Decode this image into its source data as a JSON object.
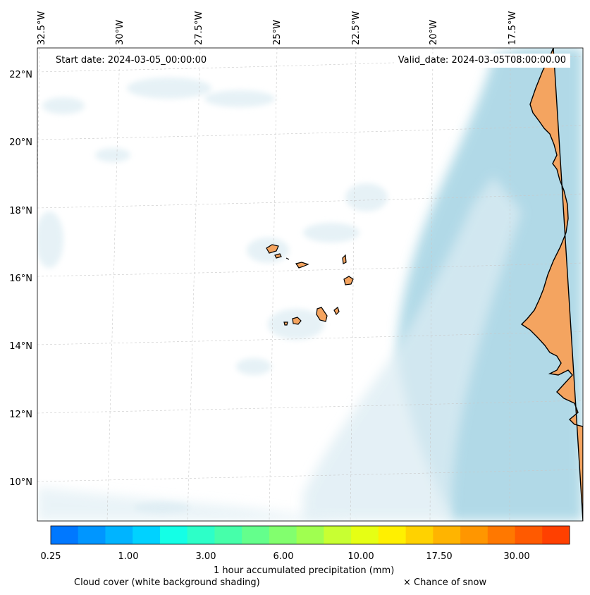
{
  "header": {
    "start_date": "Start date: 2024-03-05_00:00:00",
    "valid_date": "Valid_date: 2024-03-05T08:00:00.00"
  },
  "map": {
    "latitude_labels": [
      "22°N",
      "20°N",
      "18°N",
      "16°N",
      "14°N",
      "12°N",
      "10°N"
    ],
    "longitude_labels": [
      "32.5°W",
      "30°W",
      "27.5°W",
      "25°W",
      "22.5°W",
      "20°W",
      "17.5°W"
    ],
    "colors": {
      "land": "#f4a460",
      "cloud_heavy": "#add8e6",
      "cloud_light": "#dcecf3",
      "coastline": "#000000",
      "gridline": "#c8c8c8"
    }
  },
  "colorbar": {
    "label": "1 hour accumulated precipitation (mm)",
    "tick_labels": [
      "0.25",
      "1.00",
      "3.00",
      "6.00",
      "10.00",
      "17.50",
      "30.00"
    ],
    "colors": [
      "#0078ff",
      "#0096ff",
      "#00b4ff",
      "#00d2ff",
      "#14ffe6",
      "#2dffc8",
      "#46ffaa",
      "#64ff8c",
      "#82ff6e",
      "#a0ff50",
      "#c8ff32",
      "#e6ff14",
      "#fff000",
      "#ffd200",
      "#ffb400",
      "#ff9600",
      "#ff7800",
      "#ff5a00",
      "#ff4000"
    ]
  },
  "legend": {
    "cloud_cover": "Cloud cover (white background shading)",
    "snow": "× Chance of snow"
  }
}
